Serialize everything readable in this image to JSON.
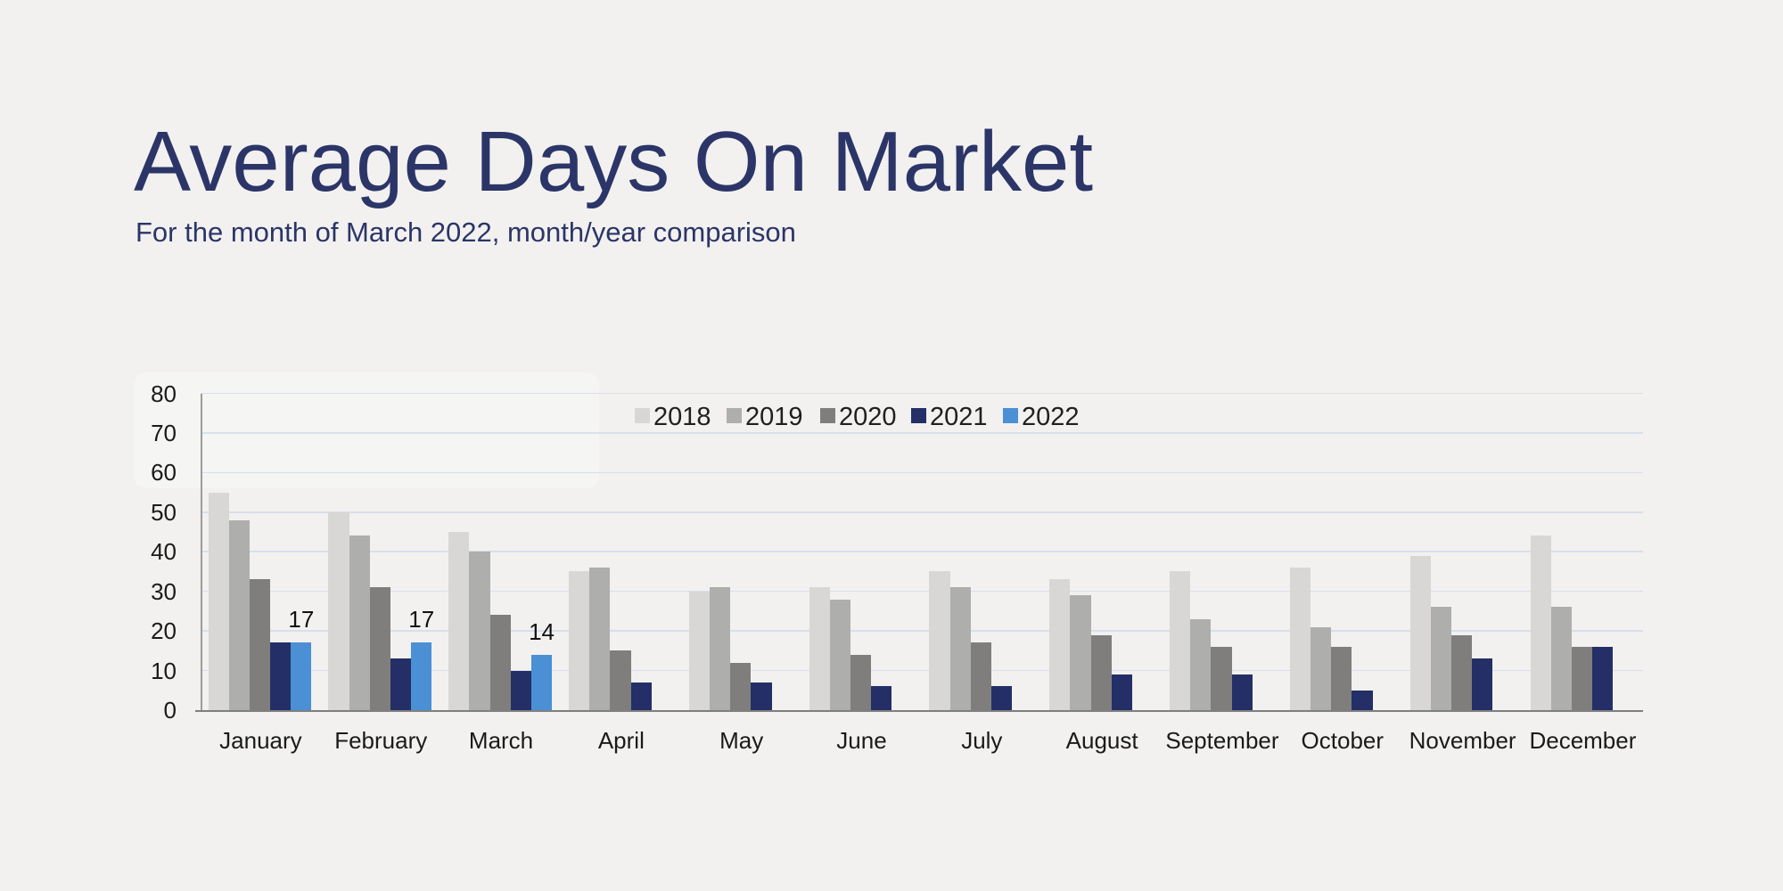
{
  "chart_data": {
    "type": "bar",
    "title": "Average Days On Market",
    "subtitle": "For the month of March 2022, month/year comparison",
    "categories": [
      "January",
      "February",
      "March",
      "April",
      "May",
      "June",
      "July",
      "August",
      "September",
      "October",
      "November",
      "December"
    ],
    "series": [
      {
        "name": "2018",
        "color": "#d8d7d5",
        "values": [
          55,
          50,
          45,
          35,
          30,
          31,
          35,
          33,
          35,
          36,
          39,
          44
        ]
      },
      {
        "name": "2019",
        "color": "#aeaeac",
        "values": [
          48,
          44,
          40,
          36,
          31,
          28,
          31,
          29,
          23,
          21,
          26,
          26
        ]
      },
      {
        "name": "2020",
        "color": "#7f7e7c",
        "values": [
          33,
          31,
          24,
          15,
          12,
          14,
          17,
          19,
          16,
          16,
          19,
          16
        ]
      },
      {
        "name": "2021",
        "color": "#232f66",
        "values": [
          17,
          13,
          10,
          7,
          7,
          6,
          6,
          9,
          9,
          5,
          13,
          16
        ]
      },
      {
        "name": "2022",
        "color": "#4b8fd5",
        "values": [
          17,
          17,
          14,
          null,
          null,
          null,
          null,
          null,
          null,
          null,
          null,
          null
        ]
      }
    ],
    "annotations": [
      {
        "category": "January",
        "series": "2022",
        "text": "17"
      },
      {
        "category": "February",
        "series": "2022",
        "text": "17"
      },
      {
        "category": "March",
        "series": "2022",
        "text": "14"
      }
    ],
    "y_axis": {
      "min": 0,
      "max": 80,
      "step": 10,
      "tick_labels": [
        "0",
        "10",
        "20",
        "30",
        "40",
        "50",
        "60",
        "70",
        "80"
      ]
    },
    "legend_position": "top",
    "grid": true,
    "colors": {
      "background": "#f2f1ef",
      "title_text": "#2b3568",
      "axis_text": "#1a1a1a",
      "gridline": "#d7dfee",
      "axis_line": "#7f7f7f"
    }
  }
}
